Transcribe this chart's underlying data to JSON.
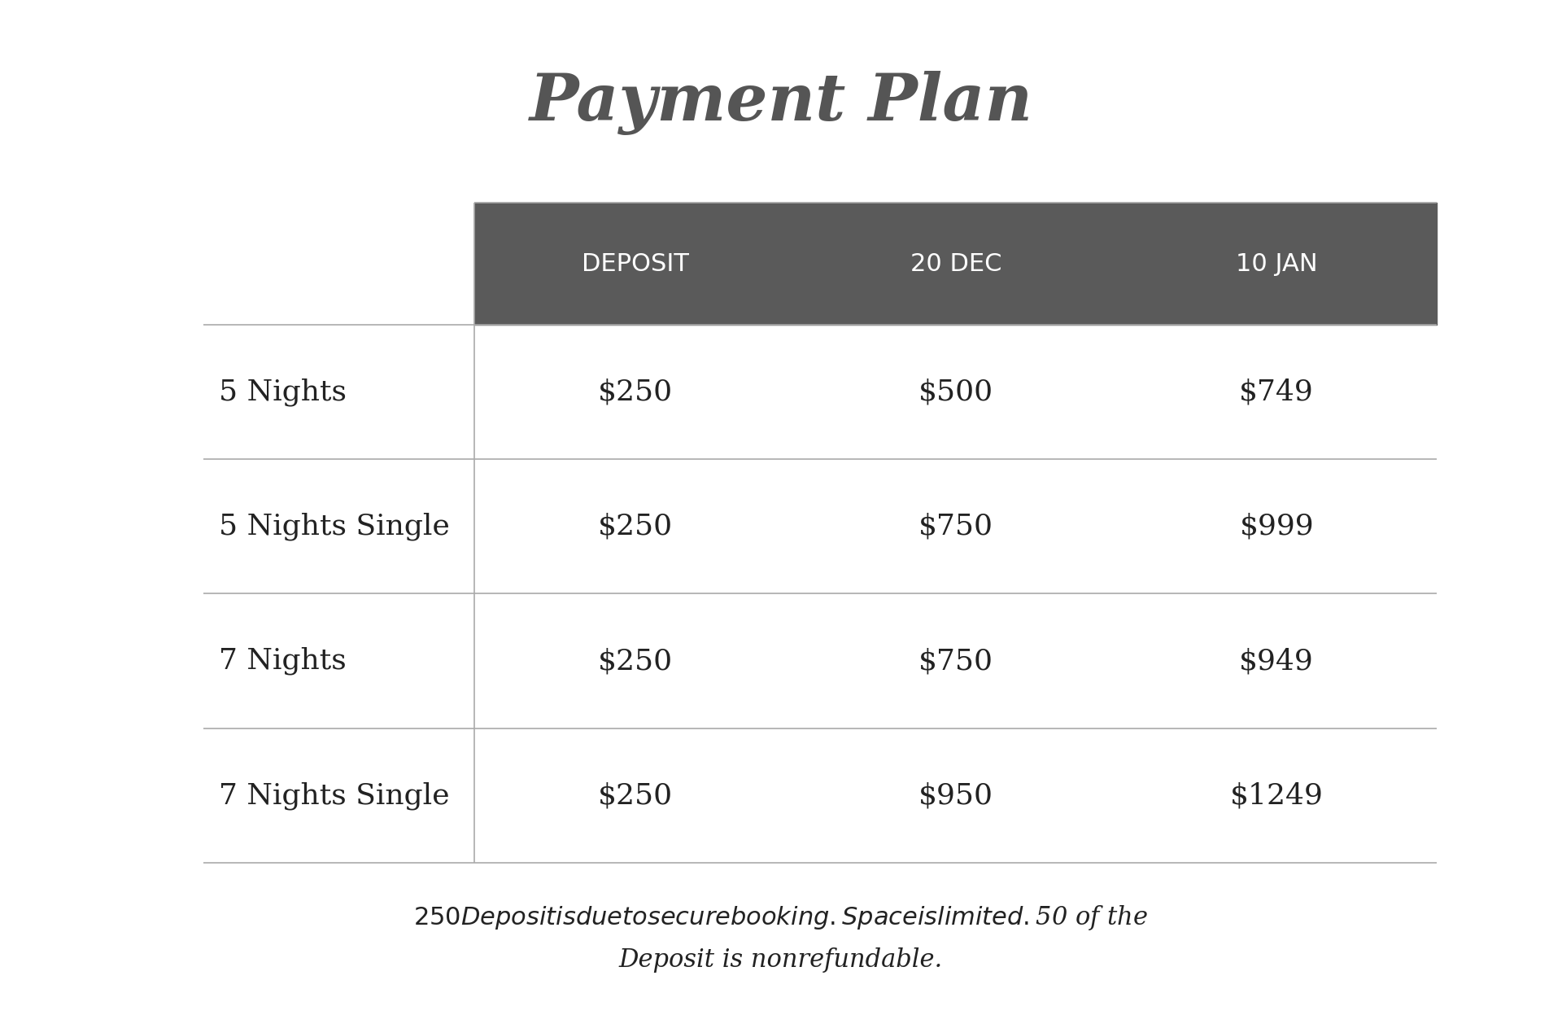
{
  "title": "Payment Plan",
  "title_fontsize": 58,
  "title_color": "#555555",
  "background_color": "#ffffff",
  "header_bg_color": "#5a5a5a",
  "header_text_color": "#ffffff",
  "header_labels": [
    "DEPOSIT",
    "20 DEC",
    "10 JAN"
  ],
  "row_labels": [
    "5 Nights",
    "5 Nights Single",
    "7 Nights",
    "7 Nights Single"
  ],
  "table_data": [
    [
      "$250",
      "$500",
      "$749"
    ],
    [
      "$250",
      "$750",
      "$999"
    ],
    [
      "$250",
      "$750",
      "$949"
    ],
    [
      "$250",
      "$950",
      "$1249"
    ]
  ],
  "footer_text": "$250 Deposit is due to secure booking. Space is limited. $50 of the\nDeposit is nonrefundable.",
  "header_fontsize": 22,
  "row_label_fontsize": 26,
  "cell_fontsize": 26,
  "footer_fontsize": 22,
  "line_color": "#aaaaaa",
  "text_color": "#222222"
}
